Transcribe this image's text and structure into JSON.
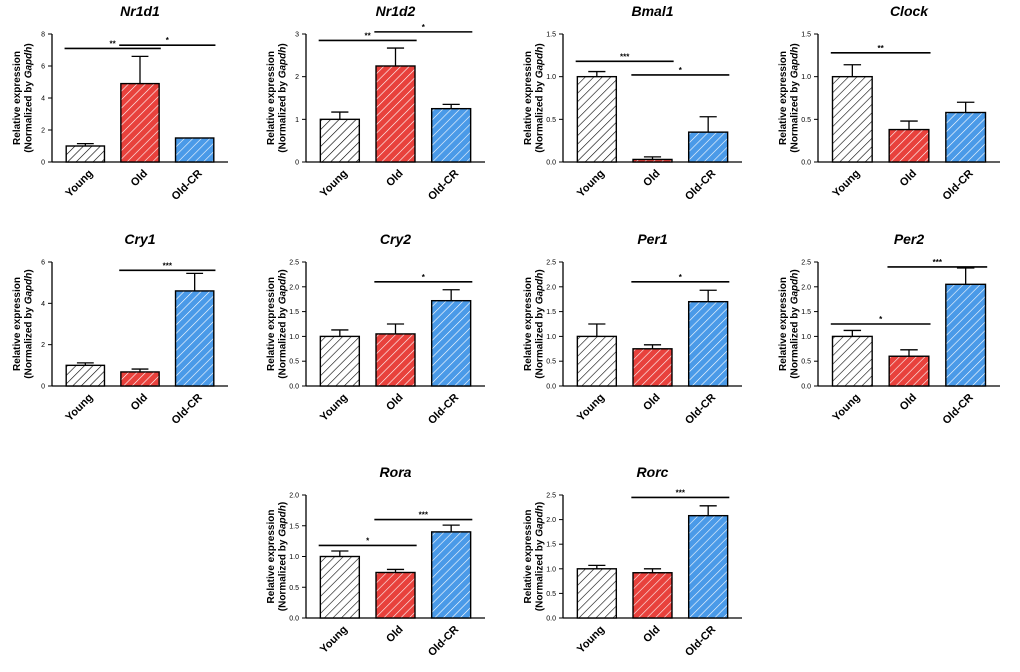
{
  "figure": {
    "ylabel_line1": "Relative expression",
    "ylabel_line2_prefix": "(Normalized by ",
    "ylabel_line2_gene": "Gapdh",
    "ylabel_line2_suffix": ")"
  },
  "colors": {
    "Young": "#ffffff",
    "Old": "#e8413c",
    "Old-CR": "#4a9ae8",
    "hatch_young": "#000000",
    "hatch_colored": "#ffffff"
  },
  "chart_data": [
    {
      "type": "bar",
      "title": "Nr1d1",
      "categories": [
        "Young",
        "Old",
        "Old-CR"
      ],
      "values": [
        1.0,
        4.9,
        1.5
      ],
      "errors": [
        0.15,
        1.7,
        0.0
      ],
      "ylim": [
        0,
        8
      ],
      "yticks": [
        0,
        2,
        4,
        6,
        8
      ],
      "ytick_labels": [
        "0",
        "2",
        "4",
        "6",
        "8"
      ],
      "sig": [
        {
          "from": 0,
          "to": 1,
          "y": 7.1,
          "label": "**"
        },
        {
          "from": 1,
          "to": 2,
          "y": 7.3,
          "label": "*"
        }
      ]
    },
    {
      "type": "bar",
      "title": "Nr1d2",
      "categories": [
        "Young",
        "Old",
        "Old-CR"
      ],
      "values": [
        1.0,
        2.25,
        1.25
      ],
      "errors": [
        0.17,
        0.42,
        0.1
      ],
      "ylim": [
        0,
        3
      ],
      "yticks": [
        0,
        1,
        2,
        3
      ],
      "ytick_labels": [
        "0",
        "1",
        "2",
        "3"
      ],
      "sig": [
        {
          "from": 0,
          "to": 1,
          "y": 2.85,
          "label": "**"
        },
        {
          "from": 1,
          "to": 2,
          "y": 3.05,
          "label": "*"
        }
      ]
    },
    {
      "type": "bar",
      "title": "Bmal1",
      "categories": [
        "Young",
        "Old",
        "Old-CR"
      ],
      "values": [
        1.0,
        0.03,
        0.35
      ],
      "errors": [
        0.06,
        0.03,
        0.18
      ],
      "ylim": [
        0,
        1.5
      ],
      "yticks": [
        0,
        0.5,
        1.0,
        1.5
      ],
      "ytick_labels": [
        "0.0",
        "0.5",
        "1.0",
        "1.5"
      ],
      "sig": [
        {
          "from": 0,
          "to": 1,
          "y": 1.18,
          "label": "***"
        },
        {
          "from": 1,
          "to": 2,
          "y": 1.02,
          "label": "*"
        }
      ]
    },
    {
      "type": "bar",
      "title": "Clock",
      "categories": [
        "Young",
        "Old",
        "Old-CR"
      ],
      "values": [
        1.0,
        0.38,
        0.58
      ],
      "errors": [
        0.14,
        0.1,
        0.12
      ],
      "ylim": [
        0,
        1.5
      ],
      "yticks": [
        0,
        0.5,
        1.0,
        1.5
      ],
      "ytick_labels": [
        "0.0",
        "0.5",
        "1.0",
        "1.5"
      ],
      "sig": [
        {
          "from": 0,
          "to": 1,
          "y": 1.28,
          "label": "**"
        }
      ]
    },
    {
      "type": "bar",
      "title": "Cry1",
      "categories": [
        "Young",
        "Old",
        "Old-CR"
      ],
      "values": [
        1.0,
        0.68,
        4.6
      ],
      "errors": [
        0.12,
        0.14,
        0.85
      ],
      "ylim": [
        0,
        6
      ],
      "yticks": [
        0,
        2,
        4,
        6
      ],
      "ytick_labels": [
        "0",
        "2",
        "4",
        "6"
      ],
      "sig": [
        {
          "from": 1,
          "to": 2,
          "y": 5.6,
          "label": "***"
        }
      ]
    },
    {
      "type": "bar",
      "title": "Cry2",
      "categories": [
        "Young",
        "Old",
        "Old-CR"
      ],
      "values": [
        1.0,
        1.05,
        1.72
      ],
      "errors": [
        0.13,
        0.2,
        0.22
      ],
      "ylim": [
        0,
        2.5
      ],
      "yticks": [
        0,
        0.5,
        1.0,
        1.5,
        2.0,
        2.5
      ],
      "ytick_labels": [
        "0.0",
        "0.5",
        "1.0",
        "1.5",
        "2.0",
        "2.5"
      ],
      "sig": [
        {
          "from": 1,
          "to": 2,
          "y": 2.1,
          "label": "*"
        }
      ]
    },
    {
      "type": "bar",
      "title": "Per1",
      "categories": [
        "Young",
        "Old",
        "Old-CR"
      ],
      "values": [
        1.0,
        0.75,
        1.7
      ],
      "errors": [
        0.25,
        0.08,
        0.23
      ],
      "ylim": [
        0,
        2.5
      ],
      "yticks": [
        0,
        0.5,
        1.0,
        1.5,
        2.0,
        2.5
      ],
      "ytick_labels": [
        "0.0",
        "0.5",
        "1.0",
        "1.5",
        "2.0",
        "2.5"
      ],
      "sig": [
        {
          "from": 1,
          "to": 2,
          "y": 2.1,
          "label": "*"
        }
      ]
    },
    {
      "type": "bar",
      "title": "Per2",
      "categories": [
        "Young",
        "Old",
        "Old-CR"
      ],
      "values": [
        1.0,
        0.6,
        2.05
      ],
      "errors": [
        0.12,
        0.13,
        0.33
      ],
      "ylim": [
        0,
        2.5
      ],
      "yticks": [
        0,
        0.5,
        1.0,
        1.5,
        2.0,
        2.5
      ],
      "ytick_labels": [
        "0.0",
        "0.5",
        "1.0",
        "1.5",
        "2.0",
        "2.5"
      ],
      "sig": [
        {
          "from": 0,
          "to": 1,
          "y": 1.25,
          "label": "*"
        },
        {
          "from": 1,
          "to": 2,
          "y": 2.4,
          "label": "***"
        }
      ]
    },
    {
      "type": "bar",
      "title": "Rora",
      "categories": [
        "Young",
        "Old",
        "Old-CR"
      ],
      "values": [
        1.0,
        0.74,
        1.4
      ],
      "errors": [
        0.09,
        0.05,
        0.11
      ],
      "ylim": [
        0,
        2.0
      ],
      "yticks": [
        0,
        0.5,
        1.0,
        1.5,
        2.0
      ],
      "ytick_labels": [
        "0.0",
        "0.5",
        "1.0",
        "1.5",
        "2.0"
      ],
      "sig": [
        {
          "from": 0,
          "to": 1,
          "y": 1.18,
          "label": "*"
        },
        {
          "from": 1,
          "to": 2,
          "y": 1.6,
          "label": "***"
        }
      ]
    },
    {
      "type": "bar",
      "title": "Rorc",
      "categories": [
        "Young",
        "Old",
        "Old-CR"
      ],
      "values": [
        1.0,
        0.92,
        2.08
      ],
      "errors": [
        0.07,
        0.08,
        0.2
      ],
      "ylim": [
        0,
        2.5
      ],
      "yticks": [
        0,
        0.5,
        1.0,
        1.5,
        2.0,
        2.5
      ],
      "ytick_labels": [
        "0.0",
        "0.5",
        "1.0",
        "1.5",
        "2.0",
        "2.5"
      ],
      "sig": [
        {
          "from": 1,
          "to": 2,
          "y": 2.45,
          "label": "***"
        }
      ]
    }
  ]
}
